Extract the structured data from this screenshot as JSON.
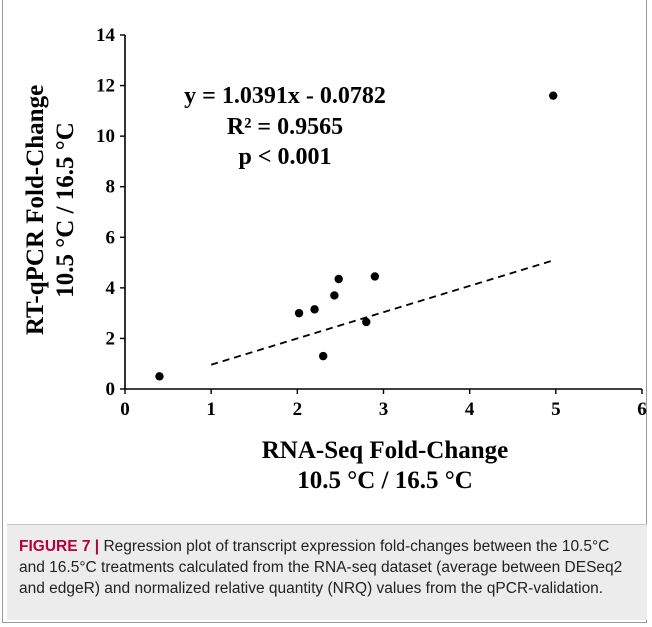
{
  "chart_data": {
    "type": "scatter",
    "xlabel_line1": "RNA-Seq Fold-Change",
    "xlabel_line2": "10.5 °C / 16.5 °C",
    "ylabel_line1": "RT-qPCR Fold-Change",
    "ylabel_line2": "10.5 °C / 16.5 °C",
    "xlim": [
      0,
      6
    ],
    "ylim": [
      0,
      14
    ],
    "xticks": [
      0,
      1,
      2,
      3,
      4,
      5,
      6
    ],
    "yticks": [
      0,
      2,
      4,
      6,
      8,
      10,
      12,
      14
    ],
    "points": [
      {
        "x": 0.4,
        "y": 0.5
      },
      {
        "x": 2.02,
        "y": 3.0
      },
      {
        "x": 2.2,
        "y": 3.15
      },
      {
        "x": 2.3,
        "y": 1.3
      },
      {
        "x": 2.43,
        "y": 3.7
      },
      {
        "x": 2.48,
        "y": 4.35
      },
      {
        "x": 2.8,
        "y": 2.65
      },
      {
        "x": 2.9,
        "y": 4.45
      },
      {
        "x": 4.97,
        "y": 11.6
      }
    ],
    "trendline": {
      "slope": 1.0391,
      "intercept": -0.0782,
      "x_range": [
        1.0,
        4.97
      ],
      "style": "dashed"
    },
    "annotations": [
      "y = 1.0391x - 0.0782",
      "R² = 0.9565",
      "p < 0.001"
    ],
    "grid": false,
    "legend": "none"
  },
  "caption": {
    "label": "FIGURE 7 |",
    "text": " Regression plot of transcript expression fold-changes between the 10.5°C and 16.5°C treatments calculated from the RNA-seq dataset (average between DESeq2 and edgeR) and normalized relative quantity (NRQ) values from the qPCR-validation."
  },
  "colors": {
    "marker": "#000000",
    "caption_label": "#b5003b",
    "caption_bg": "#ececec"
  }
}
